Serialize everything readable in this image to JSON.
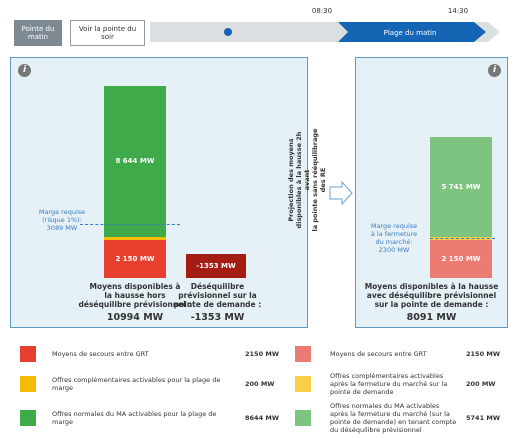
{
  "buttons": [
    "Pointe du\nmatin",
    "Voir la pointe du\nsoir"
  ],
  "timeline": {
    "times": [
      "08:30",
      "14:30"
    ],
    "label": "Plage du matin"
  },
  "panels": [
    {
      "segments": [
        {
          "value": 2150,
          "label": "2 150 MW",
          "color": "#e8402f"
        },
        {
          "value": 200,
          "color": "#f5bc00"
        },
        {
          "value": 8644,
          "label": "8 644 MW",
          "color": "#3faa4a"
        }
      ],
      "margin": {
        "value": 3089,
        "label": "Marge requise\n(risque 1%):\n3089 MW"
      },
      "caption": "Moyens disponibles à\nla hausse hors\ndéséquilibre prévisionnel :",
      "total": "10994 MW",
      "imbalance": {
        "value": -1353,
        "label": "-1353 MW",
        "color": "#a51c12",
        "caption": "Déséquilibre\nprévisionnel sur la\npointe de demande :",
        "total": "-1353 MW"
      }
    },
    {
      "segments": [
        {
          "value": 2150,
          "label": "2 150 MW",
          "color": "#ec7b74"
        },
        {
          "value": 200,
          "color": "#f7cf4a"
        },
        {
          "value": 5741,
          "label": "5 741 MW",
          "color": "#7cc47f"
        }
      ],
      "margin": {
        "value": 2300,
        "label": "Marge requise\nà la fermeture\ndu marché:\n2300 MW"
      },
      "caption": "Moyens disponibles à la hausse\navec déséquilibre prévisionnel\nsur la pointe de demande :",
      "total": "8091 MW"
    }
  ],
  "projection": "Projection des moyens disponibles à la hausse 2h avant\nla pointe sans rééquilibrage des RE",
  "legend": [
    [
      {
        "color": "#e8402f",
        "text": "Moyens de secours entre GRT",
        "value": "2150 MW"
      },
      {
        "color": "#f5bc00",
        "text": "Offres complémentaires activables pour la plage de\nmarge",
        "value": "200 MW"
      },
      {
        "color": "#3faa4a",
        "text": "Offres normales du MA activables pour la plage de\nmarge",
        "value": "8644 MW"
      }
    ],
    [
      {
        "color": "#ec7b74",
        "text": "Moyens de secours entre GRT",
        "value": "2150 MW"
      },
      {
        "color": "#f7cf4a",
        "text": "Offres complémentaires activables\naprès la fermeture du marché sur la\npointe de demande",
        "value": "200 MW"
      },
      {
        "color": "#7cc47f",
        "text": "Offres normales du MA activables\naprès la fermeture du marché (sur la\npointe de demande) en tenant compte\ndu déséquilibre prévisionnel",
        "value": "5741 MW"
      }
    ]
  ]
}
